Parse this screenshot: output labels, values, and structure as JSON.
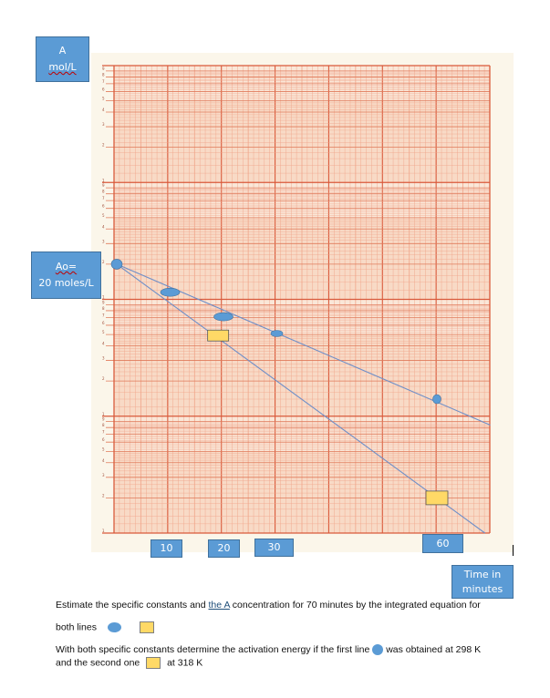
{
  "labels": {
    "y_axis_line1": "A",
    "y_axis_line2": "mol/L",
    "a0_line1": "Ao=",
    "a0_line2": "20 moles/L",
    "x_axis_line1": "Time in",
    "x_axis_line2": "minutes",
    "x_ticks": [
      "10",
      "20",
      "30",
      "60"
    ]
  },
  "text": {
    "q1_part1": "Estimate the specific constants and ",
    "q1_link": "the  A",
    "q1_part2": " concentration for 70 minutes by the integrated equation for",
    "q1_line2": "both lines",
    "q2_line1_part1": "With both specific constants determine the activation energy if the first line",
    "q2_line1_part2": "was obtained at 298 K",
    "q2_line2_part1": "and the second one",
    "q2_line2_part2": "at 318 K"
  },
  "colors": {
    "series_blue": "#5b9bd5",
    "series_yellow": "#ffd966",
    "line": "#6f8fc8",
    "grid_major": "#d9593a",
    "grid_minor": "#f0a58a",
    "paper": "#fbf6ea"
  },
  "chart_data": {
    "type": "scatter",
    "title": "",
    "xlabel": "Time in minutes",
    "ylabel": "A mol/L",
    "yscale": "log",
    "ylim": [
      0.1,
      1000
    ],
    "xlim": [
      0,
      70
    ],
    "x_tick_labels": [
      10,
      20,
      30,
      60
    ],
    "grid": true,
    "annotations": [
      "Ao= 20 moles/L"
    ],
    "series": [
      {
        "name": "first line (circle, 298 K)",
        "marker": "ellipse",
        "x": [
          0,
          10,
          20,
          30,
          60
        ],
        "values": [
          20,
          11.5,
          7.1,
          5.1,
          1.4
        ],
        "fit_line": {
          "x": [
            0,
            70
          ],
          "y": [
            20,
            0.84
          ]
        }
      },
      {
        "name": "second line (square, 318 K)",
        "marker": "square",
        "x": [
          0,
          19,
          60
        ],
        "values": [
          20,
          4.9,
          0.2
        ],
        "fit_line": {
          "x": [
            0,
            69
          ],
          "y": [
            20,
            0.1
          ]
        }
      }
    ]
  }
}
